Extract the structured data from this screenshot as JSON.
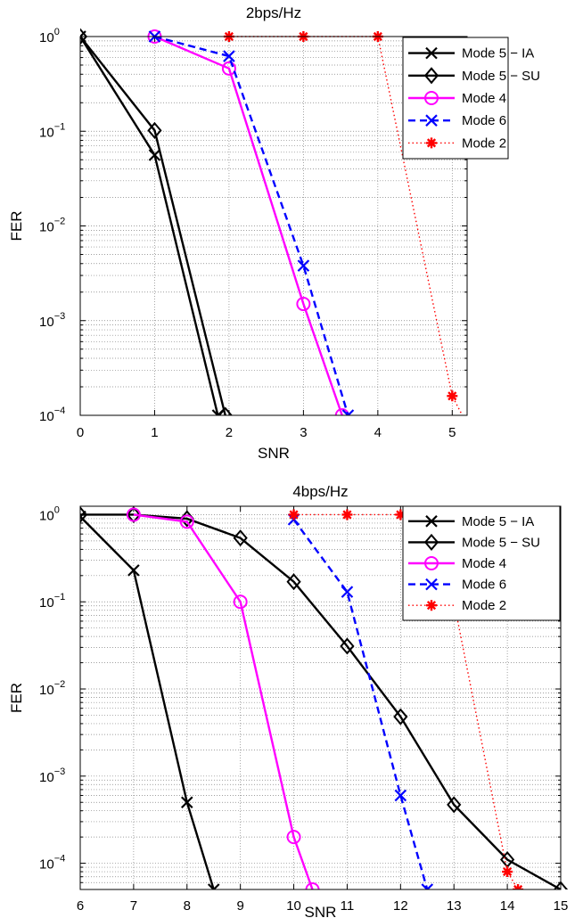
{
  "chart_data": [
    {
      "type": "line",
      "title": "2bps/Hz",
      "xlabel": "SNR",
      "ylabel": "FER",
      "xlim": [
        0,
        5.2
      ],
      "ylim": [
        0.0001,
        1
      ],
      "yscale": "log",
      "grid": true,
      "legend_position": "top-right",
      "xticks": [
        "0",
        "1",
        "2",
        "3",
        "4",
        "5"
      ],
      "yticks": [
        {
          "base": "10",
          "exp": "0"
        },
        {
          "base": "10",
          "exp": "−1"
        },
        {
          "base": "10",
          "exp": "−2"
        },
        {
          "base": "10",
          "exp": "−3"
        },
        {
          "base": "10",
          "exp": "−4"
        }
      ],
      "series": [
        {
          "name": "Mode 5 − IA",
          "color": "#000000",
          "style": "solid",
          "marker": "x",
          "x": [
            0,
            1,
            1.85
          ],
          "y": [
            1,
            0.056,
            0.0001
          ]
        },
        {
          "name": "Mode 5 − SU",
          "color": "#000000",
          "style": "solid",
          "marker": "diamond",
          "x": [
            0,
            1,
            1.95
          ],
          "y": [
            1,
            0.102,
            0.0001
          ]
        },
        {
          "name": "Mode 4",
          "color": "#ff00ff",
          "style": "solid",
          "marker": "circle",
          "x": [
            1,
            2,
            3,
            3.52
          ],
          "y": [
            1,
            0.46,
            0.0015,
            0.0001
          ]
        },
        {
          "name": "Mode 6",
          "color": "#0000ff",
          "style": "dashed",
          "marker": "x",
          "x": [
            1,
            2,
            3,
            3.6
          ],
          "y": [
            1,
            0.62,
            0.0038,
            0.0001
          ]
        },
        {
          "name": "Mode 2",
          "color": "#ff0000",
          "style": "dotted",
          "marker": "star",
          "x": [
            2,
            3,
            4,
            5,
            5.2
          ],
          "y": [
            1,
            1,
            1,
            0.00016,
            8e-05
          ]
        }
      ]
    },
    {
      "type": "line",
      "title": "4bps/Hz",
      "xlabel": "SNR",
      "ylabel": "FER",
      "xlim": [
        6,
        15
      ],
      "ylim": [
        5e-05,
        1.25
      ],
      "yscale": "log",
      "grid": true,
      "legend_position": "top-right",
      "xticks": [
        "6",
        "7",
        "8",
        "9",
        "10",
        "11",
        "12",
        "13",
        "14",
        "15"
      ],
      "yticks": [
        {
          "base": "10",
          "exp": "0"
        },
        {
          "base": "10",
          "exp": "−1"
        },
        {
          "base": "10",
          "exp": "−2"
        },
        {
          "base": "10",
          "exp": "−3"
        },
        {
          "base": "10",
          "exp": "−4"
        }
      ],
      "series": [
        {
          "name": "Mode 5 − IA",
          "color": "#000000",
          "style": "solid",
          "marker": "x",
          "x": [
            6,
            7,
            8,
            8.5
          ],
          "y": [
            0.95,
            0.23,
            0.0005,
            5e-05
          ]
        },
        {
          "name": "Mode 5 − SU",
          "color": "#000000",
          "style": "solid",
          "marker": "diamond",
          "x": [
            6,
            7,
            8,
            9,
            10,
            11,
            12,
            13,
            14,
            15
          ],
          "y": [
            1,
            1,
            0.9,
            0.54,
            0.17,
            0.031,
            0.0048,
            0.00047,
            0.00011,
            5e-05
          ]
        },
        {
          "name": "Mode 4",
          "color": "#ff00ff",
          "style": "solid",
          "marker": "circle",
          "x": [
            7,
            8,
            9,
            10,
            10.35
          ],
          "y": [
            1,
            0.83,
            0.1,
            0.0002,
            5e-05
          ]
        },
        {
          "name": "Mode 6",
          "color": "#0000ff",
          "style": "dashed",
          "marker": "x",
          "x": [
            10,
            11,
            12,
            12.5
          ],
          "y": [
            0.88,
            0.13,
            0.0006,
            5e-05
          ]
        },
        {
          "name": "Mode 2",
          "color": "#ff0000",
          "style": "dotted",
          "marker": "star",
          "x": [
            10,
            11,
            12,
            13,
            14,
            14.2
          ],
          "y": [
            1,
            1,
            1,
            0.1,
            8e-05,
            5e-05
          ]
        }
      ]
    }
  ]
}
